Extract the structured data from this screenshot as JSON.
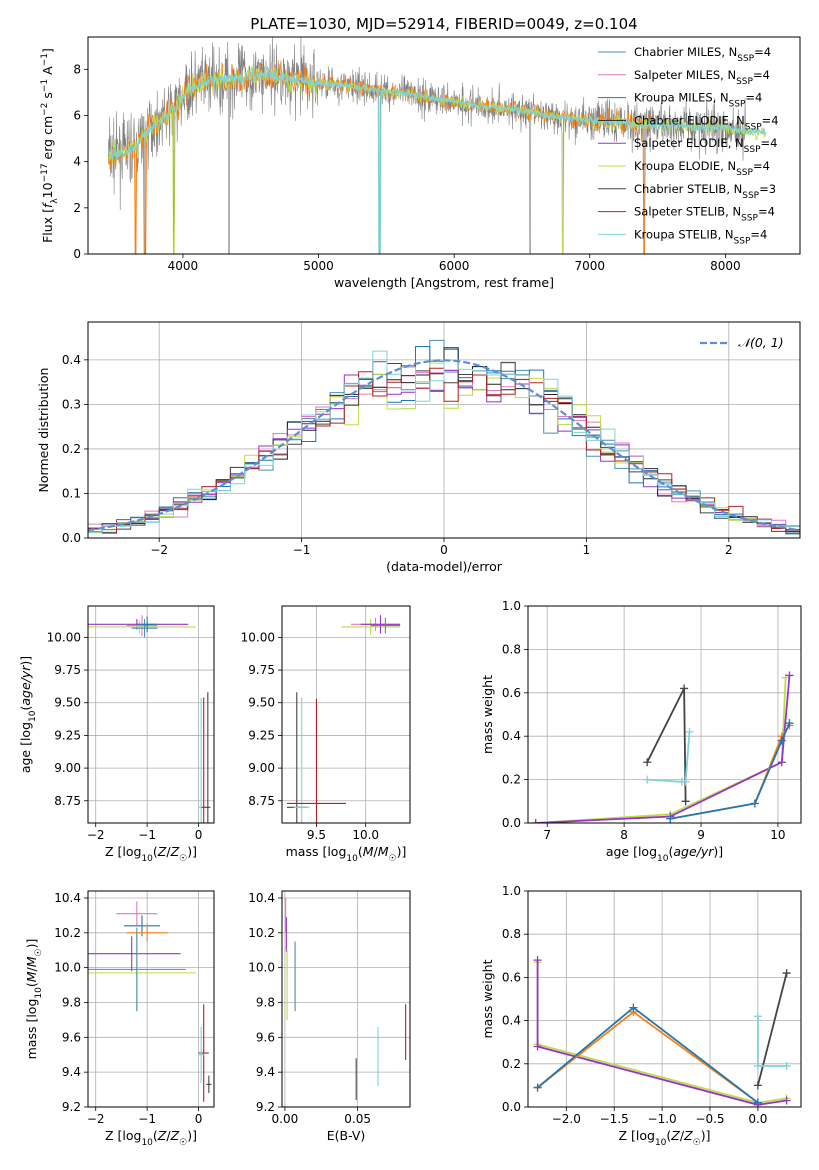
{
  "figure": {
    "title": "PLATE=1030, MJD=52914, FIBERID=0049, z=0.104"
  },
  "colors": {
    "chabrier_miles": "#4a8fb0",
    "salpeter_miles": "#e377c2",
    "kroupa_miles": "#1f77b4",
    "chabrier_elodie": "#222222",
    "salpeter_elodie": "#9932cc",
    "kroupa_elodie": "#bcde45",
    "chabrier_stelib": "#444444",
    "salpeter_stelib": "#b22222",
    "kroupa_stelib": "#7fd3d8",
    "data": "#808080",
    "orange": "#ff7f0e",
    "normal": "#5b8fd9"
  },
  "chart_data": [
    {
      "id": "spectrum",
      "type": "line",
      "xlabel": "wavelength [Angstrom, rest frame]",
      "ylabel": "Flux [f_λ10^-17 erg cm^-2 s^-1 A^-1]",
      "xlim": [
        3300,
        8550
      ],
      "ylim": [
        0,
        9.4
      ],
      "xticks": [
        4000,
        5000,
        6000,
        7000,
        8000
      ],
      "yticks": [
        0,
        2,
        4,
        6,
        8
      ],
      "legend_position": "right",
      "legend": [
        {
          "label": "Chabrier MILES, N",
          "sub": "SSP",
          "tail": "=4",
          "color_key": "chabrier_miles"
        },
        {
          "label": "Salpeter MILES, N",
          "sub": "SSP",
          "tail": "=4",
          "color_key": "salpeter_miles"
        },
        {
          "label": "Kroupa MILES, N",
          "sub": "SSP",
          "tail": "=4",
          "color_key": "kroupa_miles"
        },
        {
          "label": "Chabrier ELODIE, N",
          "sub": "SSP",
          "tail": "=4",
          "color_key": "chabrier_elodie"
        },
        {
          "label": "Salpeter ELODIE, N",
          "sub": "SSP",
          "tail": "=4",
          "color_key": "salpeter_elodie"
        },
        {
          "label": "Kroupa ELODIE, N",
          "sub": "SSP",
          "tail": "=4",
          "color_key": "kroupa_elodie"
        },
        {
          "label": "Chabrier STELIB, N",
          "sub": "SSP",
          "tail": "=3",
          "color_key": "chabrier_stelib"
        },
        {
          "label": "Salpeter STELIB, N",
          "sub": "SSP",
          "tail": "=4",
          "color_key": "salpeter_stelib"
        },
        {
          "label": "Kroupa STELIB, N",
          "sub": "SSP",
          "tail": "=4",
          "color_key": "kroupa_stelib"
        }
      ],
      "continuum": [
        [
          3450,
          4.3
        ],
        [
          3550,
          4.4
        ],
        [
          3650,
          4.6
        ],
        [
          3750,
          5.4
        ],
        [
          3850,
          5.9
        ],
        [
          3950,
          6.3
        ],
        [
          4050,
          7.2
        ],
        [
          4200,
          7.5
        ],
        [
          4400,
          7.6
        ],
        [
          4600,
          7.8
        ],
        [
          4800,
          7.6
        ],
        [
          5000,
          7.4
        ],
        [
          5200,
          7.3
        ],
        [
          5400,
          7.1
        ],
        [
          5600,
          7.0
        ],
        [
          5800,
          6.8
        ],
        [
          6000,
          6.6
        ],
        [
          6200,
          6.4
        ],
        [
          6400,
          6.3
        ],
        [
          6600,
          6.1
        ],
        [
          6800,
          5.9
        ],
        [
          7000,
          5.8
        ],
        [
          7200,
          5.7
        ],
        [
          7400,
          5.6
        ],
        [
          7600,
          5.6
        ],
        [
          7800,
          5.5
        ],
        [
          8000,
          5.5
        ],
        [
          8200,
          5.3
        ]
      ],
      "absorption_lines": [
        3650,
        3720,
        3933,
        4340,
        5450,
        6560,
        6800,
        7400
      ]
    },
    {
      "id": "residuals",
      "type": "step-histogram",
      "xlabel": "(data-model)/error",
      "ylabel": "Normed distribution",
      "xlim": [
        -2.5,
        2.5
      ],
      "ylim": [
        0,
        0.485
      ],
      "xticks": [
        -2,
        -1,
        0,
        1,
        2
      ],
      "yticks": [
        0.0,
        0.1,
        0.2,
        0.3,
        0.4
      ],
      "grid": true,
      "legend_position": "top-right",
      "normal_label": "𝒩(0, 1)",
      "bin_width": 0.1
    },
    {
      "id": "age_vs_Z",
      "type": "errorbar",
      "xlabel": "Z [log10(Z/Z☉)]",
      "ylabel": "age  [log10(age/yr)]",
      "xlim": [
        -2.15,
        0.3
      ],
      "ylim": [
        8.58,
        10.24
      ],
      "xticks": [
        -2,
        -1,
        0
      ],
      "yticks": [
        8.75,
        9.0,
        9.25,
        9.5,
        9.75,
        10.0
      ],
      "grid": true,
      "points": [
        {
          "x": -1.2,
          "y": 10.1,
          "xerr": 1.0,
          "yerr": 0.04,
          "color_key": "salpeter_elodie"
        },
        {
          "x": -1.15,
          "y": 10.08,
          "xerr": 1.1,
          "yerr": 0.05,
          "color_key": "kroupa_elodie"
        },
        {
          "x": -1.1,
          "y": 10.09,
          "xerr": 0.3,
          "yerr": 0.08,
          "color_key": "salpeter_miles"
        },
        {
          "x": -1.05,
          "y": 10.07,
          "xerr": 0.25,
          "yerr": 0.07,
          "color_key": "chabrier_miles"
        },
        {
          "x": -1.0,
          "y": 10.1,
          "xerr": 0.2,
          "yerr": 0.06,
          "color_key": "kroupa_miles"
        },
        {
          "x": 0.18,
          "y": 8.7,
          "xerr": 0.05,
          "yerr": 0.88,
          "color_key": "chabrier_stelib"
        },
        {
          "x": 0.05,
          "y": 8.7,
          "xerr": 0.04,
          "yerr": 0.84,
          "color_key": "kroupa_stelib"
        },
        {
          "x": 0.1,
          "y": 8.7,
          "xerr": 0.04,
          "yerr": 0.84,
          "color_key": "salpeter_stelib"
        }
      ]
    },
    {
      "id": "age_vs_mass",
      "type": "errorbar",
      "xlabel": "mass [log10(M/M☉)]",
      "ylabel": "",
      "xlim": [
        9.15,
        10.45
      ],
      "ylim": [
        8.58,
        10.24
      ],
      "xticks": [
        9.5,
        10.0
      ],
      "yticks": [
        8.75,
        9.0,
        9.25,
        9.5,
        9.75,
        10.0
      ],
      "grid": true,
      "points": [
        {
          "x": 10.1,
          "y": 10.1,
          "xerr": 0.25,
          "yerr": 0.05,
          "color_key": "salpeter_miles"
        },
        {
          "x": 10.05,
          "y": 10.08,
          "xerr": 0.3,
          "yerr": 0.06,
          "color_key": "kroupa_elodie"
        },
        {
          "x": 10.15,
          "y": 10.1,
          "xerr": 0.2,
          "yerr": 0.07,
          "color_key": "salpeter_elodie"
        },
        {
          "x": 10.2,
          "y": 10.09,
          "xerr": 0.15,
          "yerr": 0.06,
          "color_key": "chabrier_miles"
        },
        {
          "x": 9.3,
          "y": 8.7,
          "xerr": 0.1,
          "yerr": 0.88,
          "color_key": "chabrier_stelib"
        },
        {
          "x": 9.35,
          "y": 8.7,
          "xerr": 0.08,
          "yerr": 0.84,
          "color_key": "kroupa_stelib"
        },
        {
          "x": 9.5,
          "y": 8.73,
          "xerr": 0.3,
          "yerr": 0.8,
          "color_key": "salpeter_stelib"
        }
      ]
    },
    {
      "id": "weight_vs_age",
      "type": "line",
      "xlabel": "age  [log10(age/yr)]",
      "ylabel": "mass weight",
      "xlim": [
        6.75,
        10.3
      ],
      "ylim": [
        0,
        1.0
      ],
      "xticks": [
        7,
        8,
        9,
        10
      ],
      "yticks": [
        0.0,
        0.2,
        0.4,
        0.6,
        0.8,
        1.0
      ],
      "grid": true,
      "series": [
        {
          "color_key": "chabrier_stelib",
          "x": [
            8.3,
            8.78,
            8.8
          ],
          "y": [
            0.28,
            0.62,
            0.1
          ]
        },
        {
          "color_key": "kroupa_stelib",
          "x": [
            8.3,
            8.75,
            8.8,
            8.85
          ],
          "y": [
            0.2,
            0.19,
            0.19,
            0.42
          ]
        },
        {
          "color_key": "kroupa_elodie",
          "x": [
            6.85,
            8.6,
            10.05,
            10.1
          ],
          "y": [
            0.0,
            0.04,
            0.28,
            0.67
          ]
        },
        {
          "color_key": "salpeter_elodie",
          "x": [
            6.85,
            8.6,
            10.05,
            10.15
          ],
          "y": [
            0.0,
            0.03,
            0.28,
            0.68
          ]
        },
        {
          "color_key": "orange",
          "x": [
            8.6,
            9.7,
            10.05,
            10.15
          ],
          "y": [
            0.02,
            0.09,
            0.4,
            0.45
          ]
        },
        {
          "color_key": "kroupa_miles",
          "x": [
            8.6,
            9.7,
            10.05,
            10.15
          ],
          "y": [
            0.02,
            0.09,
            0.38,
            0.46
          ]
        }
      ]
    },
    {
      "id": "mass_vs_Z",
      "type": "errorbar",
      "xlabel": "Z [log10(Z/Z☉)]",
      "ylabel": "mass [log10(M/M☉)]",
      "xlim": [
        -2.15,
        0.3
      ],
      "ylim": [
        9.2,
        10.44
      ],
      "xticks": [
        -2,
        -1,
        0
      ],
      "yticks": [
        9.2,
        9.4,
        9.6,
        9.8,
        10.0,
        10.2,
        10.4
      ],
      "grid": true,
      "points": [
        {
          "x": -1.2,
          "y": 10.31,
          "xerr": 0.4,
          "yerr": 0.07,
          "color_key": "salpeter_miles"
        },
        {
          "x": -1.1,
          "y": 10.24,
          "xerr": 0.35,
          "yerr": 0.06,
          "color_key": "kroupa_miles"
        },
        {
          "x": -1.0,
          "y": 10.2,
          "xerr": 0.4,
          "yerr": 0.05,
          "color_key": "orange"
        },
        {
          "x": -1.3,
          "y": 10.08,
          "xerr": 0.95,
          "yerr": 0.1,
          "color_key": "salpeter_elodie"
        },
        {
          "x": -1.2,
          "y": 9.97,
          "xerr": 1.15,
          "yerr": 0.22,
          "color_key": "kroupa_elodie"
        },
        {
          "x": -1.2,
          "y": 9.99,
          "xerr": 0.95,
          "yerr": 0.24,
          "color_key": "chabrier_miles"
        },
        {
          "x": 0.1,
          "y": 9.51,
          "xerr": 0.1,
          "yerr": 0.28,
          "color_key": "salpeter_stelib"
        },
        {
          "x": 0.05,
          "y": 9.5,
          "xerr": 0.06,
          "yerr": 0.16,
          "color_key": "kroupa_stelib"
        },
        {
          "x": 0.2,
          "y": 9.33,
          "xerr": 0.05,
          "yerr": 0.05,
          "color_key": "chabrier_stelib"
        }
      ]
    },
    {
      "id": "mass_vs_ebv",
      "type": "errorbar",
      "xlabel": "E(B-V)",
      "ylabel": "",
      "xlim": [
        -0.002,
        0.086
      ],
      "ylim": [
        9.2,
        10.44
      ],
      "xticks": [
        0.0,
        0.05
      ],
      "yticks": [
        9.2,
        9.4,
        9.6,
        9.8,
        10.0,
        10.2,
        10.4
      ],
      "grid": true,
      "points": [
        {
          "x": 0.0005,
          "y": 10.3,
          "xerr": 0,
          "yerr": 0.1,
          "color_key": "salpeter_miles"
        },
        {
          "x": 0.001,
          "y": 10.19,
          "xerr": 0,
          "yerr": 0.1,
          "color_key": "salpeter_elodie"
        },
        {
          "x": 0.0015,
          "y": 9.9,
          "xerr": 0,
          "yerr": 0.2,
          "color_key": "kroupa_elodie"
        },
        {
          "x": 0.007,
          "y": 9.95,
          "xerr": 0,
          "yerr": 0.2,
          "color_key": "chabrier_miles"
        },
        {
          "x": 0.049,
          "y": 9.36,
          "xerr": 0,
          "yerr": 0.12,
          "color_key": "chabrier_stelib"
        },
        {
          "x": 0.064,
          "y": 9.49,
          "xerr": 0,
          "yerr": 0.17,
          "color_key": "kroupa_stelib"
        },
        {
          "x": 0.083,
          "y": 9.63,
          "xerr": 0,
          "yerr": 0.16,
          "color_key": "salpeter_stelib"
        }
      ]
    },
    {
      "id": "weight_vs_Z",
      "type": "line",
      "xlabel": "Z [log10(Z/Z☉)]",
      "ylabel": "mass weight",
      "xlim": [
        -2.4,
        0.45
      ],
      "ylim": [
        0,
        1.0
      ],
      "xticks": [
        -2.0,
        -1.5,
        -1.0,
        -0.5,
        0.0
      ],
      "yticks": [
        0.0,
        0.2,
        0.4,
        0.6,
        0.8,
        1.0
      ],
      "grid": true,
      "series": [
        {
          "color_key": "kroupa_elodie",
          "x": [
            -2.3,
            -2.3,
            0.0,
            0.3
          ],
          "y": [
            0.67,
            0.29,
            0.02,
            0.04
          ]
        },
        {
          "color_key": "salpeter_elodie",
          "x": [
            -2.3,
            -2.3,
            0.0,
            0.3
          ],
          "y": [
            0.68,
            0.28,
            0.01,
            0.03
          ]
        },
        {
          "color_key": "orange",
          "x": [
            -2.3,
            -1.3,
            0.0
          ],
          "y": [
            0.09,
            0.44,
            0.02
          ]
        },
        {
          "color_key": "kroupa_miles",
          "x": [
            -2.3,
            -1.3,
            0.0
          ],
          "y": [
            0.09,
            0.46,
            0.02
          ]
        },
        {
          "color_key": "chabrier_stelib",
          "x": [
            0.0,
            0.3
          ],
          "y": [
            0.1,
            0.62
          ]
        },
        {
          "color_key": "kroupa_stelib",
          "x": [
            0.0,
            0.0,
            0.3
          ],
          "y": [
            0.42,
            0.19,
            0.19
          ]
        }
      ]
    }
  ]
}
